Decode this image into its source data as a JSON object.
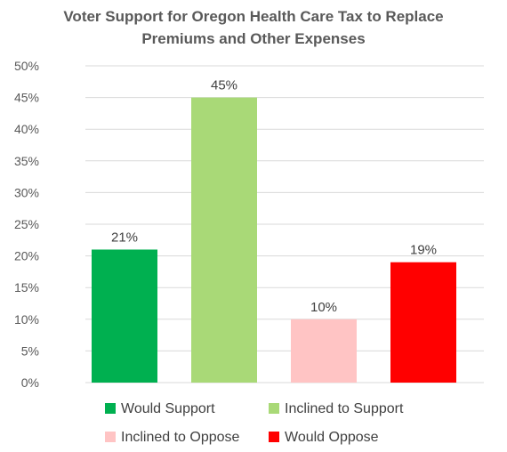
{
  "chart_data": {
    "type": "bar",
    "title_lines": [
      "Voter Support for Oregon Health Care Tax to Replace",
      "Premiums and Other Expenses"
    ],
    "categories": [
      "Would Support",
      "Inclined to Support",
      "Inclined to Oppose",
      "Would Oppose"
    ],
    "values": [
      21,
      45,
      10,
      19
    ],
    "value_labels": [
      "21%",
      "45%",
      "10%",
      "19%"
    ],
    "colors": [
      "#00b050",
      "#a9d977",
      "#ffc4c4",
      "#ff0000"
    ],
    "ylim": [
      0,
      50
    ],
    "yticks": [
      0,
      5,
      10,
      15,
      20,
      25,
      30,
      35,
      40,
      45,
      50
    ],
    "ytick_labels": [
      "0%",
      "5%",
      "10%",
      "15%",
      "20%",
      "25%",
      "30%",
      "35%",
      "40%",
      "45%",
      "50%"
    ],
    "xlabel": "",
    "ylabel": "",
    "grid": true,
    "grid_color": "#d9d9d9",
    "legend": {
      "placement": "bottom",
      "entries": [
        "Would Support",
        "Inclined to Support",
        "Inclined to Oppose",
        "Would Oppose"
      ]
    }
  }
}
